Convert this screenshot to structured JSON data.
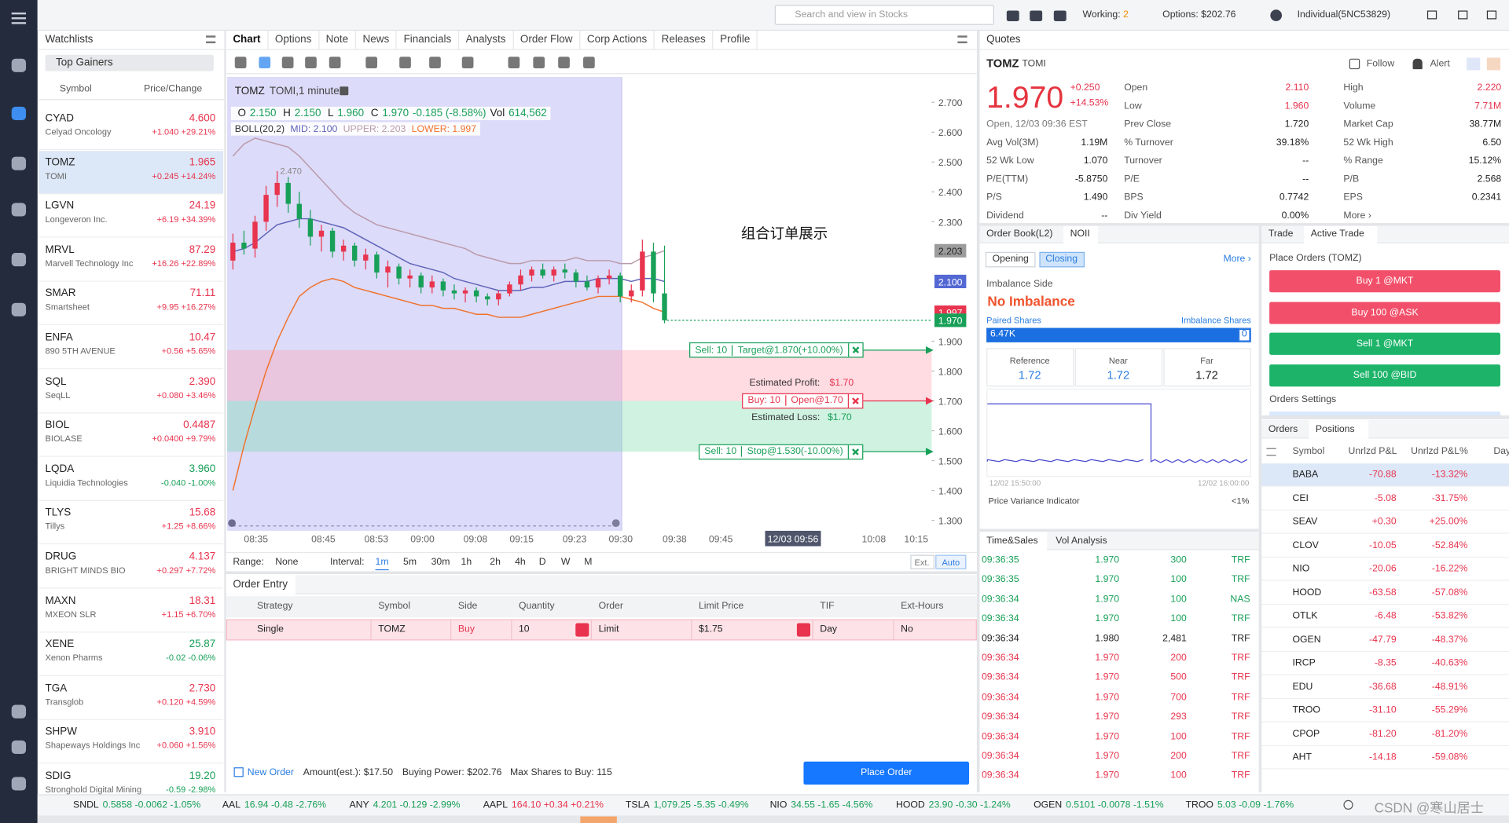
{
  "topbar": {
    "search": "Search and view in Stocks",
    "working": "Working:",
    "working_count": "2",
    "options": "Options: $202.76",
    "account": "Individual(5NC53829)"
  },
  "watchlist": {
    "title": "Watchlists",
    "list": "Top Gainers",
    "col_symbol": "Symbol",
    "col_price": "Price/Change",
    "rows": [
      {
        "symbol": "CYAD",
        "name": "Celyad Oncology",
        "price": "4.600",
        "change": "+1.040 +29.21%"
      },
      {
        "symbol": "TOMZ",
        "name": "TOMI",
        "price": "1.965",
        "change": "+0.245 +14.24%"
      },
      {
        "symbol": "LGVN",
        "name": "Longeveron Inc.",
        "price": "24.19",
        "change": "+6.19 +34.39%"
      },
      {
        "symbol": "MRVL",
        "name": "Marvell Technology Inc",
        "price": "87.29",
        "change": "+16.26 +22.89%"
      },
      {
        "symbol": "SMAR",
        "name": "Smartsheet",
        "price": "71.11",
        "change": "+9.95 +16.27%"
      },
      {
        "symbol": "ENFA",
        "name": "890 5TH AVENUE",
        "price": "10.47",
        "change": "+0.56 +5.65%"
      },
      {
        "symbol": "SQL",
        "name": "SeqLL",
        "price": "2.390",
        "change": "+0.080 +3.46%"
      },
      {
        "symbol": "BIOL",
        "name": "BIOLASE",
        "price": "0.4487",
        "change": "+0.0400 +9.79%"
      },
      {
        "symbol": "LQDA",
        "name": "Liquidia Technologies",
        "price": "3.960",
        "change": "-0.040 -1.00%"
      },
      {
        "symbol": "TLYS",
        "name": "Tillys",
        "price": "15.68",
        "change": "+1.25 +8.66%"
      },
      {
        "symbol": "DRUG",
        "name": "BRIGHT MINDS BIO",
        "price": "4.137",
        "change": "+0.297 +7.72%"
      },
      {
        "symbol": "MAXN",
        "name": "MXEON SLR",
        "price": "18.31",
        "change": "+1.15 +6.70%"
      },
      {
        "symbol": "XENE",
        "name": "Xenon Pharms",
        "price": "25.87",
        "change": "-0.02 -0.06%"
      },
      {
        "symbol": "TGA",
        "name": "Transglob",
        "price": "2.730",
        "change": "+0.120 +4.59%"
      },
      {
        "symbol": "SHPW",
        "name": "Shapeways Holdings Inc",
        "price": "3.910",
        "change": "+0.060 +1.56%"
      },
      {
        "symbol": "SDIG",
        "name": "Stronghold Digital Mining",
        "price": "19.20",
        "change": "-0.59 -2.98%"
      }
    ]
  },
  "chart_tabs": [
    "Chart",
    "Options",
    "Note",
    "News",
    "Financials",
    "Analysts",
    "Order Flow",
    "Corp Actions",
    "Releases",
    "Profile"
  ],
  "chart_data": {
    "type": "candlestick",
    "symbol": "TOMZ",
    "title": "TOMI,1 minute",
    "ohlc": [
      {
        "label": "O",
        "value": "2.150"
      },
      {
        "label": "H",
        "value": "2.150"
      },
      {
        "label": "L",
        "value": "1.960"
      },
      {
        "label": "C",
        "value": "1.970"
      }
    ],
    "change": "-0.185 (-8.58%)",
    "vol_label": "Vol",
    "vol": "614,562",
    "boll": {
      "label": "BOLL(20,2)",
      "mid_label": "MID: 2.100",
      "upper_label": "UPPER: 2.203",
      "lower_label": "LOWER: 1.997",
      "upper": [
        2.52,
        2.56,
        2.58,
        2.57,
        2.56,
        2.55,
        2.52,
        2.48,
        2.44,
        2.4,
        2.36,
        2.33,
        2.31,
        2.29,
        2.28,
        2.27,
        2.26,
        2.25,
        2.24,
        2.23,
        2.22,
        2.21,
        2.19,
        2.18,
        2.17,
        2.16,
        2.16,
        2.17,
        2.17,
        2.17,
        2.17,
        2.18,
        2.17,
        2.17,
        2.17,
        2.16,
        2.16,
        2.18,
        2.19,
        2.203
      ],
      "mid": [
        2.2,
        2.21,
        2.23,
        2.26,
        2.29,
        2.3,
        2.31,
        2.31,
        2.3,
        2.29,
        2.28,
        2.26,
        2.24,
        2.22,
        2.2,
        2.18,
        2.16,
        2.15,
        2.14,
        2.13,
        2.11,
        2.1,
        2.09,
        2.08,
        2.07,
        2.07,
        2.07,
        2.08,
        2.08,
        2.09,
        2.1,
        2.1,
        2.1,
        2.11,
        2.11,
        2.11,
        2.1,
        2.11,
        2.11,
        2.1
      ],
      "lower": [
        1.4,
        1.55,
        1.68,
        1.8,
        1.9,
        1.98,
        2.05,
        2.08,
        2.1,
        2.11,
        2.1,
        2.08,
        2.07,
        2.06,
        2.05,
        2.04,
        2.03,
        2.02,
        2.02,
        2.01,
        2.01,
        2.0,
        1.99,
        1.99,
        1.98,
        1.98,
        1.98,
        1.99,
        2.0,
        2.01,
        2.02,
        2.03,
        2.04,
        2.05,
        2.05,
        2.05,
        2.04,
        2.03,
        2.01,
        1.997
      ],
      "upper_color": "#b99aaa",
      "mid_color": "#5f63b8",
      "lower_color": "#f0722c"
    },
    "open": [
      2.17,
      2.23,
      2.21,
      2.3,
      2.39,
      2.43,
      2.36,
      2.31,
      2.25,
      2.27,
      2.2,
      2.22,
      2.17,
      2.19,
      2.13,
      2.15,
      2.11,
      2.12,
      2.08,
      2.1,
      2.07,
      2.06,
      2.07,
      2.05,
      2.04,
      2.06,
      2.09,
      2.12,
      2.14,
      2.12,
      2.14,
      2.13,
      2.1,
      2.08,
      2.11,
      2.12,
      2.05,
      2.07,
      2.2,
      2.06
    ],
    "high": [
      2.26,
      2.27,
      2.32,
      2.42,
      2.47,
      2.45,
      2.4,
      2.34,
      2.29,
      2.28,
      2.24,
      2.23,
      2.21,
      2.2,
      2.17,
      2.16,
      2.14,
      2.13,
      2.12,
      2.11,
      2.09,
      2.08,
      2.08,
      2.06,
      2.07,
      2.1,
      2.14,
      2.15,
      2.16,
      2.15,
      2.16,
      2.14,
      2.12,
      2.12,
      2.14,
      2.13,
      2.09,
      2.24,
      2.23,
      2.22
    ],
    "low": [
      2.14,
      2.19,
      2.18,
      2.27,
      2.35,
      2.33,
      2.28,
      2.22,
      2.2,
      2.18,
      2.17,
      2.15,
      2.14,
      2.11,
      2.08,
      2.09,
      2.08,
      2.06,
      2.06,
      2.05,
      2.04,
      2.03,
      2.03,
      2.02,
      2.02,
      2.05,
      2.07,
      2.1,
      2.11,
      2.1,
      2.11,
      2.08,
      2.07,
      2.06,
      2.09,
      2.03,
      2.03,
      2.05,
      2.03,
      1.96
    ],
    "close": [
      2.23,
      2.21,
      2.3,
      2.39,
      2.43,
      2.36,
      2.31,
      2.25,
      2.27,
      2.2,
      2.22,
      2.17,
      2.19,
      2.13,
      2.15,
      2.11,
      2.12,
      2.08,
      2.1,
      2.07,
      2.06,
      2.07,
      2.05,
      2.04,
      2.06,
      2.09,
      2.12,
      2.14,
      2.12,
      2.14,
      2.13,
      2.1,
      2.08,
      2.11,
      2.12,
      2.05,
      2.07,
      2.2,
      2.06,
      1.97
    ],
    "up_color": "#e8344e",
    "down_color": "#18a058",
    "grid": false,
    "ylim": [
      1.265,
      2.785
    ],
    "yticks": [
      {
        "value": 2.7,
        "label": "2.700"
      },
      {
        "value": 2.6,
        "label": "2.600"
      },
      {
        "value": 2.5,
        "label": "2.500"
      },
      {
        "value": 2.4,
        "label": "2.400"
      },
      {
        "value": 2.3,
        "label": "2.300"
      },
      {
        "value": 1.9,
        "label": "1.900"
      },
      {
        "value": 1.8,
        "label": "1.800"
      },
      {
        "value": 1.7,
        "label": "1.700"
      },
      {
        "value": 1.6,
        "label": "1.600"
      },
      {
        "value": 1.5,
        "label": "1.500"
      },
      {
        "value": 1.4,
        "label": "1.400"
      },
      {
        "value": 1.3,
        "label": "1.300"
      }
    ],
    "xticks": [
      "08:35",
      "08:45",
      "08:53",
      "09:00",
      "09:08",
      "09:15",
      "09:23",
      "09:30",
      "09:38",
      "09:45",
      "10:08",
      "10:15"
    ],
    "crosshair_time": "12/03 09:56",
    "high_marker": {
      "value": 2.47,
      "label": "2.470"
    },
    "price_tags": [
      {
        "value": 2.203,
        "label": "2.203",
        "color": "#9c9c9c"
      },
      {
        "value": 2.1,
        "label": "2.100",
        "color": "#5468d4"
      },
      {
        "value": 1.997,
        "label": "1.997",
        "color": "#e8344e"
      },
      {
        "value": 1.97,
        "label": "1.970",
        "color": "#18a058"
      }
    ],
    "annotation": "组合订单展示",
    "order_lines": [
      {
        "qty": "Sell: 10",
        "label": "Target@1.870(+10.00%)",
        "value": 1.87,
        "color": "#18a058"
      },
      {
        "qty": "Buy: 10",
        "label": "Open@1.70",
        "value": 1.7,
        "color": "#e8344e"
      },
      {
        "qty": "Sell: 10",
        "label": "Stop@1.530(-10.00%)",
        "value": 1.53,
        "color": "#18a058"
      }
    ],
    "estimated_profit": {
      "label": "Estimated Profit:",
      "value": "$1.70"
    },
    "estimated_loss": {
      "label": "Estimated Loss:",
      "value": "$1.70"
    }
  },
  "range_bar": {
    "range": "Range:",
    "range_value": "None",
    "interval": "Interval:",
    "intervals": [
      "1m",
      "5m",
      "30m",
      "1h",
      "2h",
      "4h",
      "D",
      "W",
      "M"
    ],
    "ext": "Ext.",
    "auto": "Auto"
  },
  "order_entry": {
    "title": "Order Entry",
    "columns": [
      "Strategy",
      "Symbol",
      "Side",
      "Quantity",
      "Order",
      "Limit Price",
      "TIF",
      "Ext-Hours"
    ],
    "row": [
      "Single",
      "TOMZ",
      "Buy",
      "10",
      "Limit",
      "$1.75",
      "Day",
      "No"
    ],
    "new_order": "New Order",
    "amount": "Amount(est.): $17.50",
    "buying_power": "Buying Power: $202.76",
    "max_shares": "Max Shares to Buy: 115",
    "place": "Place Order"
  },
  "quotes": {
    "tab": "Quotes",
    "symbol": "TOMZ",
    "name": "TOMI",
    "follow": "Follow",
    "alert": "Alert",
    "price": "1.970",
    "change": "+0.250",
    "change_pct": "+14.53%",
    "status": "Open, 12/03 09:36 EST",
    "rows": [
      [
        [
          "Open",
          "2.110"
        ],
        [
          "High",
          "2.220"
        ]
      ],
      [
        [
          "Low",
          "1.960"
        ],
        [
          "Volume",
          "7.71M"
        ]
      ],
      [
        [
          "Prev Close",
          "1.720"
        ],
        [
          "Market Cap",
          "38.77M"
        ]
      ],
      [
        [
          "Avg Vol(3M)",
          "1.19M"
        ],
        [
          "% Turnover",
          "39.18%"
        ],
        [
          "52 Wk High",
          "6.50"
        ]
      ],
      [
        [
          "52 Wk Low",
          "1.070"
        ],
        [
          "Turnover",
          "--"
        ],
        [
          "% Range",
          "15.12%"
        ]
      ],
      [
        [
          "P/E(TTM)",
          "-5.8750"
        ],
        [
          "P/E",
          "--"
        ],
        [
          "P/B",
          "2.568"
        ]
      ],
      [
        [
          "P/S",
          "1.490"
        ],
        [
          "BPS",
          "0.7742"
        ],
        [
          "EPS",
          "0.2341"
        ]
      ],
      [
        [
          "Dividend",
          "--"
        ],
        [
          "Div Yield",
          "0.00%"
        ],
        [
          "More ›"
        ]
      ]
    ]
  },
  "order_book": {
    "tabs": [
      "Order Book(L2)",
      "NOII"
    ],
    "toggle": [
      "Opening",
      "Closing"
    ],
    "more": "More ›",
    "imbalance_side_label": "Imbalance Side",
    "imbalance_side": "No Imbalance",
    "paired": "Paired Shares",
    "imbalance_shares": "Imbalance Shares",
    "paired_value": "6.47K",
    "imbalance_value": "0",
    "refs": [
      [
        "Reference",
        "1.72"
      ],
      [
        "Near",
        "1.72"
      ],
      [
        "Far",
        "1.72"
      ]
    ],
    "times": [
      "12/02 15:50:00",
      "12/02 16:00:00"
    ],
    "pvi": "Price Variance Indicator",
    "pvi_value": "<1%"
  },
  "trade": {
    "tabs": [
      "Trade",
      "Active Trade"
    ],
    "title": "Place Orders (TOMZ)",
    "buttons": [
      "Buy 1 @MKT",
      "Buy 100 @ASK",
      "Sell 1 @MKT",
      "Sell 100 @BID"
    ],
    "settings": "Orders Settings"
  },
  "positions": {
    "tabs": [
      "Orders",
      "Positions"
    ],
    "columns": [
      "Symbol",
      "Unrlzd P&L",
      "Unrlzd P&L%",
      "Day"
    ],
    "rows": [
      [
        "BABA",
        "-70.88",
        "-13.32%"
      ],
      [
        "CEI",
        "-5.08",
        "-31.75%"
      ],
      [
        "SEAV",
        "+0.30",
        "+25.00%"
      ],
      [
        "CLOV",
        "-10.05",
        "-52.84%"
      ],
      [
        "NIO",
        "-20.06",
        "-16.22%"
      ],
      [
        "HOOD",
        "-63.58",
        "-57.08%"
      ],
      [
        "OTLK",
        "-6.48",
        "-53.82%"
      ],
      [
        "OGEN",
        "-47.79",
        "-48.37%"
      ],
      [
        "IRCP",
        "-8.35",
        "-40.63%"
      ],
      [
        "EDU",
        "-36.68",
        "-48.91%"
      ],
      [
        "TROO",
        "-31.10",
        "-55.29%"
      ],
      [
        "CPOP",
        "-81.20",
        "-81.20%"
      ],
      [
        "AHT",
        "-14.18",
        "-59.08%"
      ]
    ]
  },
  "time_sales": {
    "tabs": [
      "Time&Sales",
      "Vol Analysis"
    ],
    "rows": [
      {
        "cells": [
          "09:36:35",
          "1.970",
          "300",
          "TRF"
        ],
        "color": "#18a058"
      },
      {
        "cells": [
          "09:36:35",
          "1.970",
          "100",
          "TRF"
        ],
        "color": "#18a058"
      },
      {
        "cells": [
          "09:36:34",
          "1.970",
          "100",
          "NAS"
        ],
        "color": "#18a058"
      },
      {
        "cells": [
          "09:36:34",
          "1.970",
          "100",
          "TRF"
        ],
        "color": "#18a058"
      },
      {
        "cells": [
          "09:36:34",
          "1.980",
          "2,481",
          "TRF"
        ],
        "color": "#222222"
      },
      {
        "cells": [
          "09:36:34",
          "1.970",
          "200",
          "TRF"
        ],
        "color": "#e8344e"
      },
      {
        "cells": [
          "09:36:34",
          "1.970",
          "500",
          "TRF"
        ],
        "color": "#e8344e"
      },
      {
        "cells": [
          "09:36:34",
          "1.970",
          "700",
          "TRF"
        ],
        "color": "#e8344e"
      },
      {
        "cells": [
          "09:36:34",
          "1.970",
          "293",
          "TRF"
        ],
        "color": "#e8344e"
      },
      {
        "cells": [
          "09:36:34",
          "1.970",
          "100",
          "TRF"
        ],
        "color": "#e8344e"
      },
      {
        "cells": [
          "09:36:34",
          "1.970",
          "200",
          "TRF"
        ],
        "color": "#e8344e"
      },
      {
        "cells": [
          "09:36:34",
          "1.970",
          "100",
          "TRF"
        ],
        "color": "#e8344e"
      }
    ]
  },
  "ticker": [
    {
      "symbol": "SNDL",
      "quote": "0.5858 -0.0062 -1.05%"
    },
    {
      "symbol": "AAL",
      "quote": "16.94 -0.48 -2.76%"
    },
    {
      "symbol": "ANY",
      "quote": "4.201 -0.129 -2.99%"
    },
    {
      "symbol": "AAPL",
      "quote": "164.10 +0.34 +0.21%"
    },
    {
      "symbol": "TSLA",
      "quote": "1,079.25 -5.35 -0.49%"
    },
    {
      "symbol": "NIO",
      "quote": "34.55 -1.65 -4.56%"
    },
    {
      "symbol": "HOOD",
      "quote": "23.90 -0.30 -1.24%"
    },
    {
      "symbol": "OGEN",
      "quote": "0.5101 -0.0078 -1.51%"
    },
    {
      "symbol": "TROO",
      "quote": "5.03 -0.09 -1.76%"
    }
  ],
  "watermark": "CSDN @寒山居士"
}
